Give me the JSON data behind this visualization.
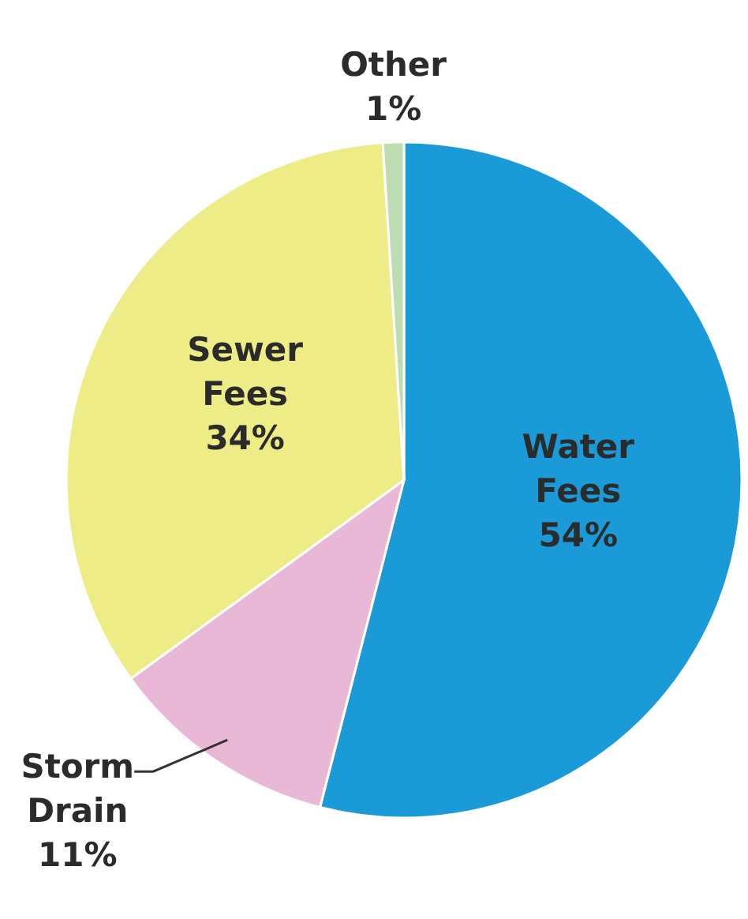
{
  "chart_data": {
    "type": "pie",
    "categories": [
      "Water Fees",
      "Storm Drain",
      "Sewer Fees",
      "Other"
    ],
    "values": [
      54,
      11,
      34,
      1
    ],
    "colors": [
      "#1a9ad6",
      "#e8b8d6",
      "#eeec86",
      "#bcdcb2"
    ],
    "value_labels": [
      "54%",
      "11%",
      "34%",
      "1%"
    ]
  }
}
